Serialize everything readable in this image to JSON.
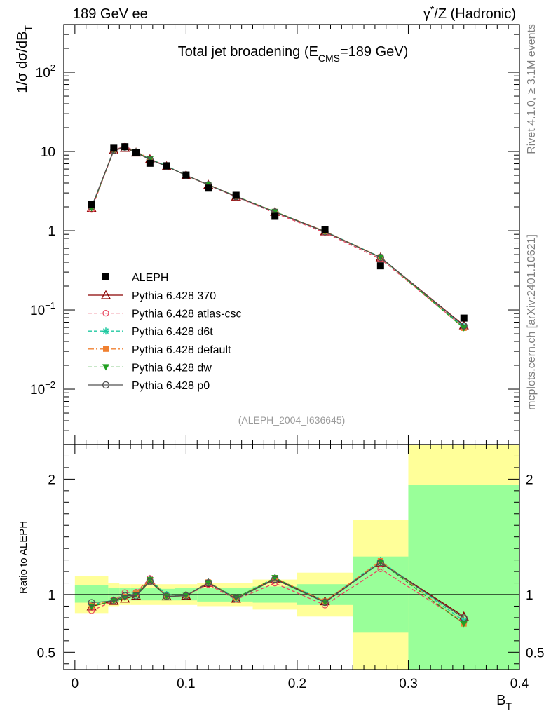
{
  "header": {
    "left": "189 GeV ee",
    "right_prefix": "γ",
    "right_sup": "*",
    "right_suffix": "/Z (Hadronic)"
  },
  "side_labels": {
    "rivet": "Rivet 4.1.0, ≥ 3.1M events",
    "mcplots": "mcplots.cern.ch [arXiv:2401.10621]"
  },
  "chart_data": {
    "type": "line",
    "title_main": "Total jet broadening (E",
    "title_sub": "CMS",
    "title_end": "=189 GeV)",
    "watermark": "(ALEPH_2004_I636645)",
    "ylabel_main": "1/σ  dσ/dB",
    "ylabel_sub": "T",
    "xlabel_main": "B",
    "xlabel_sub": "T",
    "ratio_ylabel": "Ratio to ALEPH",
    "xlim": [
      -0.01,
      0.4
    ],
    "ylim": [
      0.002,
      400
    ],
    "ratio_ylim": [
      0.35,
      2.3
    ],
    "x_ticks": [
      {
        "v": 0,
        "label": "0"
      },
      {
        "v": 0.1,
        "label": "0.1"
      },
      {
        "v": 0.2,
        "label": "0.2"
      },
      {
        "v": 0.3,
        "label": "0.3"
      },
      {
        "v": 0.4,
        "label": "0.4"
      }
    ],
    "y_ticks": [
      {
        "v": 0.01,
        "base": "10",
        "exp": "−2"
      },
      {
        "v": 0.1,
        "base": "10",
        "exp": "−1"
      },
      {
        "v": 1,
        "base": "1",
        "exp": ""
      },
      {
        "v": 10,
        "base": "10",
        "exp": ""
      },
      {
        "v": 100,
        "base": "10",
        "exp": "2"
      }
    ],
    "ratio_ticks": [
      {
        "v": 0.5,
        "label": "0.5"
      },
      {
        "v": 1,
        "label": "1"
      },
      {
        "v": 2,
        "label": "2"
      }
    ],
    "data": {
      "name": "ALEPH",
      "x": [
        0.015,
        0.035,
        0.045,
        0.055,
        0.0675,
        0.0825,
        0.1,
        0.12,
        0.145,
        0.18,
        0.225,
        0.275,
        0.35
      ],
      "y": [
        2.15,
        11.0,
        11.5,
        9.8,
        7.1,
        6.6,
        5.05,
        3.45,
        2.8,
        1.52,
        1.04,
        0.36,
        0.079
      ]
    },
    "bins": [
      {
        "x0": 0.0,
        "x1": 0.03,
        "g0": 0.93,
        "g1": 1.08,
        "y0": 0.84,
        "y1": 1.16
      },
      {
        "x0": 0.03,
        "x1": 0.04,
        "g0": 0.94,
        "g1": 1.06,
        "y0": 0.9,
        "y1": 1.1
      },
      {
        "x0": 0.04,
        "x1": 0.05,
        "g0": 0.95,
        "g1": 1.06,
        "y0": 0.91,
        "y1": 1.09
      },
      {
        "x0": 0.05,
        "x1": 0.06,
        "g0": 0.95,
        "g1": 1.06,
        "y0": 0.91,
        "y1": 1.09
      },
      {
        "x0": 0.06,
        "x1": 0.075,
        "g0": 0.95,
        "g1": 1.06,
        "y0": 0.91,
        "y1": 1.09
      },
      {
        "x0": 0.075,
        "x1": 0.09,
        "g0": 0.95,
        "g1": 1.05,
        "y0": 0.91,
        "y1": 1.09
      },
      {
        "x0": 0.09,
        "x1": 0.11,
        "g0": 0.95,
        "g1": 1.06,
        "y0": 0.91,
        "y1": 1.09
      },
      {
        "x0": 0.11,
        "x1": 0.13,
        "g0": 0.94,
        "g1": 1.06,
        "y0": 0.9,
        "y1": 1.1
      },
      {
        "x0": 0.13,
        "x1": 0.16,
        "g0": 0.94,
        "g1": 1.06,
        "y0": 0.9,
        "y1": 1.1
      },
      {
        "x0": 0.16,
        "x1": 0.2,
        "g0": 0.93,
        "g1": 1.07,
        "y0": 0.87,
        "y1": 1.13
      },
      {
        "x0": 0.2,
        "x1": 0.25,
        "g0": 0.91,
        "g1": 1.09,
        "y0": 0.81,
        "y1": 1.19
      },
      {
        "x0": 0.25,
        "x1": 0.3,
        "g0": 0.67,
        "g1": 1.33,
        "y0": 0.35,
        "y1": 1.65
      },
      {
        "x0": 0.3,
        "x1": 0.4,
        "g0": 0.35,
        "g1": 1.95,
        "y0": 0.35,
        "y1": 2.3
      }
    ],
    "series": [
      {
        "name": "Pythia 6.428 370",
        "color": "#8b0000",
        "dash": "",
        "marker": "triangle",
        "y": [
          1.93,
          10.4,
          11.1,
          9.7,
          8.0,
          6.5,
          5.0,
          3.8,
          2.7,
          1.73,
          0.98,
          0.46,
          0.064
        ]
      },
      {
        "name": "Pythia 6.428 atlas-csc",
        "color": "#e8475f",
        "dash": "5,3",
        "marker": "circle",
        "y": [
          1.85,
          10.4,
          11.7,
          10.0,
          8.1,
          6.5,
          5.0,
          3.75,
          2.68,
          1.67,
          0.945,
          0.44,
          0.06
        ]
      },
      {
        "name": "Pythia 6.428 d6t",
        "color": "#1ec8a0",
        "dash": "5,3",
        "marker": "star",
        "y": [
          1.96,
          10.5,
          11.3,
          9.9,
          8.0,
          6.6,
          5.0,
          3.82,
          2.72,
          1.74,
          0.98,
          0.465,
          0.061
        ]
      },
      {
        "name": "Pythia 6.428 default",
        "color": "#f08030",
        "dash": "8,3,2,3",
        "marker": "square",
        "y": [
          1.95,
          10.5,
          11.3,
          9.9,
          8.0,
          6.5,
          5.0,
          3.82,
          2.72,
          1.74,
          0.98,
          0.465,
          0.059
        ]
      },
      {
        "name": "Pythia 6.428 dw",
        "color": "#22a022",
        "dash": "5,3",
        "marker": "invtriangle",
        "y": [
          1.93,
          10.4,
          11.2,
          9.8,
          8.0,
          6.5,
          5.0,
          3.8,
          2.72,
          1.74,
          0.97,
          0.46,
          0.059
        ]
      },
      {
        "name": "Pythia 6.428 p0",
        "color": "#505050",
        "dash": "",
        "marker": "opencircle",
        "y": [
          2.0,
          10.4,
          11.4,
          9.7,
          7.9,
          6.5,
          5.0,
          3.8,
          2.7,
          1.72,
          0.97,
          0.46,
          0.063
        ]
      }
    ]
  }
}
